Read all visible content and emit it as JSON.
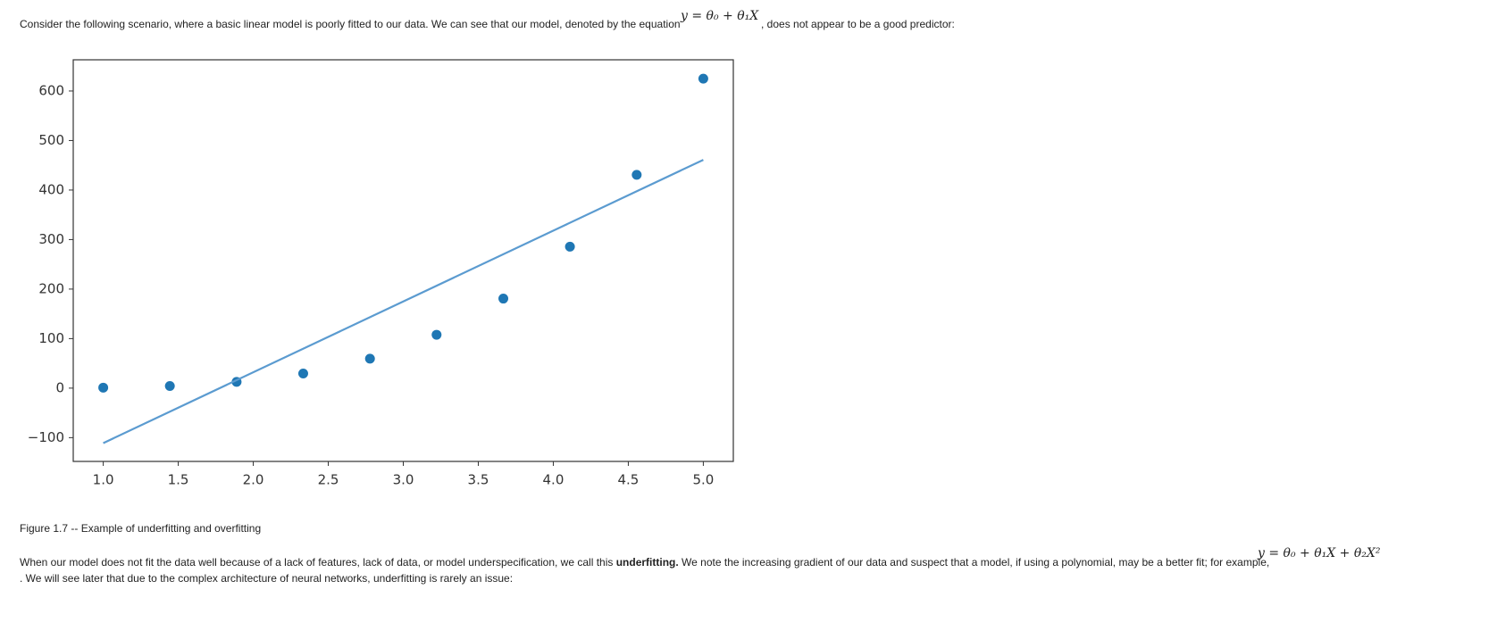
{
  "intro": {
    "text": "Consider the following scenario, where a basic linear model is poorly fitted to our data. We can see that our model, denoted by the equation",
    "equation": "y = θ₀ + θ₁X",
    "text_after": ", does not appear to be a good predictor:"
  },
  "chart_data": {
    "type": "scatter",
    "series": [
      {
        "type": "scatter",
        "color": "#1f77b4",
        "x": [
          1.0,
          1.444,
          1.889,
          2.333,
          2.778,
          3.222,
          3.667,
          4.111,
          4.556,
          5.0
        ],
        "values": [
          1,
          4.3,
          12.7,
          29.6,
          59.5,
          107.8,
          180.8,
          285.6,
          430.8,
          625
        ]
      },
      {
        "type": "line",
        "color": "#5b9bd0",
        "x": [
          1.0,
          5.0
        ],
        "values": [
          -111,
          461
        ]
      }
    ],
    "xlim": [
      0.8,
      5.2
    ],
    "ylim": [
      -148,
      663
    ],
    "xticks": [
      {
        "value": 1,
        "label": "1.0"
      },
      {
        "value": 1.5,
        "label": "1.5"
      },
      {
        "value": 2,
        "label": "2.0"
      },
      {
        "value": 2.5,
        "label": "2.5"
      },
      {
        "value": 3,
        "label": "3.0"
      },
      {
        "value": 3.5,
        "label": "3.5"
      },
      {
        "value": 4,
        "label": "4.0"
      },
      {
        "value": 4.5,
        "label": "4.5"
      },
      {
        "value": 5,
        "label": "5.0"
      }
    ],
    "yticks": [
      {
        "value": -100,
        "label": "−100"
      },
      0,
      100,
      200,
      300,
      400,
      500,
      600
    ],
    "grid": false
  },
  "caption": "Figure 1.7 -- Example of underfitting and overfitting",
  "body": {
    "text_before": "When our model does not fit the data well because of a lack of features, lack of data, or model underspecification, we call this",
    "bold": "underfitting.",
    "text_middle": "We note the increasing gradient of our data and suspect that a model, if using a polynomial, may be a better fit; for example,",
    "equation": "y = θ₀ + θ₁X + θ₂X²",
    "text_after": ". We will see later that due to the complex architecture of neural networks, underfitting is rarely an issue:"
  }
}
